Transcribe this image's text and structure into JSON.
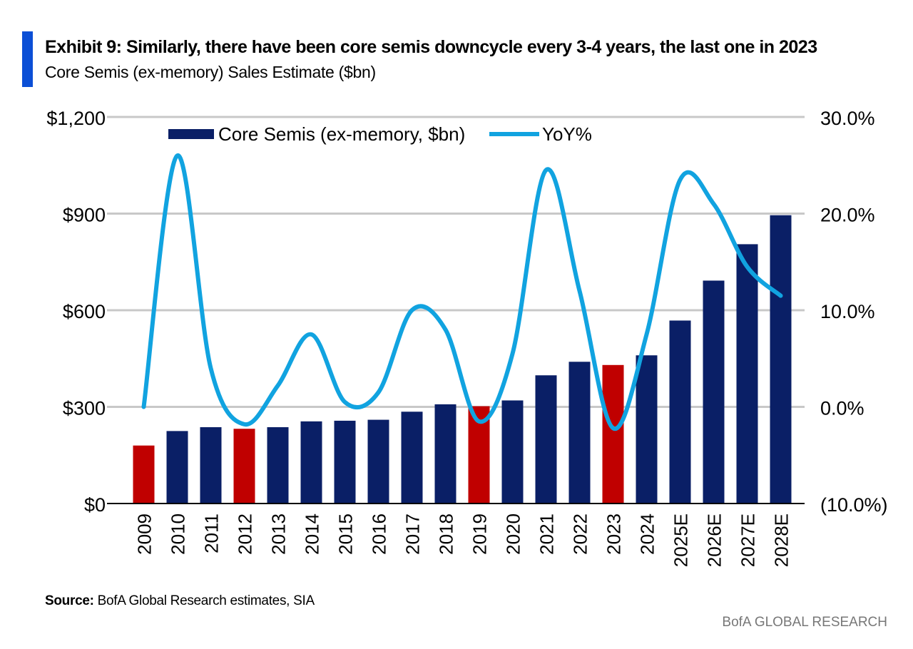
{
  "header": {
    "title": "Exhibit 9: Similarly, there have been core semis downcycle every 3-4 years, the last one in 2023",
    "subtitle": "Core Semis (ex-memory) Sales Estimate ($bn)"
  },
  "footer": {
    "source_label": "Source:",
    "source_text": "BofA Global Research estimates, SIA",
    "brand": "BofA GLOBAL RESEARCH"
  },
  "colors": {
    "accent": "#0b4fd6",
    "bar": "#0a1f66",
    "bar_downcycle": "#c00000",
    "line": "#11a3e0",
    "grid": "#c8c8c8"
  },
  "chart_data": {
    "type": "bar",
    "categories": [
      "2009",
      "2010",
      "2011",
      "2012",
      "2013",
      "2014",
      "2015",
      "2016",
      "2017",
      "2018",
      "2019",
      "2020",
      "2021",
      "2022",
      "2023",
      "2024",
      "2025E",
      "2026E",
      "2027E",
      "2028E"
    ],
    "series": [
      {
        "name": "Core Semis (ex-memory, $bn)",
        "type": "bar",
        "axis": "left",
        "values": [
          180,
          225,
          237,
          232,
          237,
          255,
          257,
          260,
          285,
          308,
          302,
          320,
          398,
          440,
          430,
          460,
          568,
          692,
          805,
          895
        ],
        "downcycle_years": [
          "2009",
          "2012",
          "2019",
          "2023"
        ]
      },
      {
        "name": "YoY%",
        "type": "line",
        "axis": "right",
        "values": [
          0.0,
          26.0,
          4.0,
          -1.8,
          2.2,
          7.5,
          0.5,
          1.5,
          10.0,
          8.0,
          -1.5,
          5.5,
          24.5,
          12.0,
          -2.2,
          7.5,
          23.5,
          21.0,
          14.5,
          11.5
        ]
      }
    ],
    "ylim_left": [
      0,
      1200
    ],
    "yticks_left": [
      "$0",
      "$300",
      "$600",
      "$900",
      "$1,200"
    ],
    "ylim_right": [
      -10,
      30
    ],
    "yticks_right": [
      "(10.0%)",
      "0.0%",
      "10.0%",
      "20.0%",
      "30.0%"
    ],
    "legend_position": "top",
    "grid": true,
    "xlabel": "",
    "ylabel": ""
  }
}
